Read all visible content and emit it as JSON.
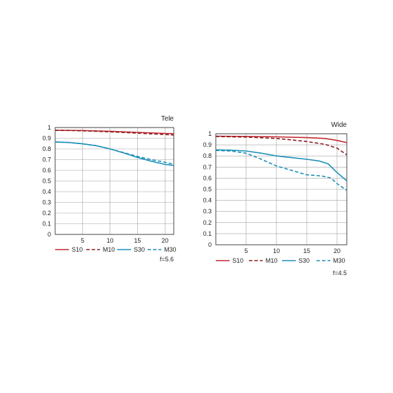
{
  "colors": {
    "sagittal_10": "#c0272d",
    "meridional_10": "#8b1c1f",
    "sagittal_30": "#1a8fb7",
    "meridional_30": "#1a8fb7",
    "grid": "#a0a0a0",
    "frame": "#333333"
  },
  "chart_data": [
    {
      "type": "line",
      "title": "Tele",
      "note": "f=5.6",
      "xlim": [
        0,
        21.6
      ],
      "ylim": [
        0,
        1
      ],
      "xticks": [
        5,
        10,
        15,
        20
      ],
      "yticks": [
        0,
        0.1,
        0.2,
        0.3,
        0.4,
        0.5,
        0.6,
        0.7,
        0.8,
        0.9,
        1
      ],
      "ytick_labels": [
        "0",
        "0.1",
        "0.2",
        "0.3",
        "0.4",
        "0.5",
        "0.6",
        "0.7",
        "0.8",
        "0.9",
        "1"
      ],
      "xtick_labels": [
        "5",
        "10",
        "15",
        "20"
      ],
      "grid": true,
      "legend_position": "below",
      "series": [
        {
          "name": "S10",
          "style": "solid",
          "color_key": "sagittal_10",
          "x": [
            0,
            5,
            10,
            15,
            20,
            21.6
          ],
          "y": [
            0.975,
            0.972,
            0.965,
            0.955,
            0.945,
            0.943
          ]
        },
        {
          "name": "M10",
          "style": "dashed",
          "color_key": "meridional_10",
          "x": [
            0,
            5,
            10,
            15,
            20,
            21.6
          ],
          "y": [
            0.975,
            0.97,
            0.96,
            0.948,
            0.935,
            0.93
          ]
        },
        {
          "name": "S30",
          "style": "solid",
          "color_key": "sagittal_30",
          "x": [
            0,
            2.5,
            5,
            7.5,
            10,
            12.5,
            15,
            17.5,
            20,
            21.6
          ],
          "y": [
            0.865,
            0.86,
            0.848,
            0.83,
            0.8,
            0.762,
            0.72,
            0.685,
            0.655,
            0.645
          ]
        },
        {
          "name": "M30",
          "style": "dashed",
          "color_key": "meridional_30",
          "x": [
            0,
            2.5,
            5,
            7.5,
            10,
            12.5,
            15,
            17.5,
            20,
            21.6
          ],
          "y": [
            0.865,
            0.86,
            0.848,
            0.83,
            0.8,
            0.765,
            0.73,
            0.7,
            0.675,
            0.655
          ]
        }
      ]
    },
    {
      "type": "line",
      "title": "Wide",
      "note": "f=4.5",
      "xlim": [
        0,
        21.6
      ],
      "ylim": [
        0,
        1
      ],
      "xticks": [
        5,
        10,
        15,
        20
      ],
      "yticks": [
        0,
        0.1,
        0.2,
        0.3,
        0.4,
        0.5,
        0.6,
        0.7,
        0.8,
        0.9,
        1
      ],
      "ytick_labels": [
        "0",
        "0.1",
        "0.2",
        "0.3",
        "0.4",
        "0.5",
        "0.6",
        "0.7",
        "0.8",
        "0.9",
        "1"
      ],
      "xtick_labels": [
        "5",
        "10",
        "15",
        "20"
      ],
      "grid": true,
      "legend_position": "below",
      "series": [
        {
          "name": "S10",
          "style": "solid",
          "color_key": "sagittal_10",
          "x": [
            0,
            5,
            10,
            15,
            18,
            20,
            21.6
          ],
          "y": [
            0.978,
            0.976,
            0.972,
            0.965,
            0.958,
            0.94,
            0.92
          ]
        },
        {
          "name": "M10",
          "style": "dashed",
          "color_key": "meridional_10",
          "x": [
            0,
            5,
            10,
            12.5,
            15,
            18,
            20,
            21.6
          ],
          "y": [
            0.975,
            0.97,
            0.958,
            0.945,
            0.93,
            0.905,
            0.87,
            0.81
          ]
        },
        {
          "name": "S30",
          "style": "solid",
          "color_key": "sagittal_30",
          "x": [
            0,
            2.5,
            5,
            7.5,
            10,
            12.5,
            15,
            17,
            18.5,
            20,
            21.6
          ],
          "y": [
            0.855,
            0.852,
            0.845,
            0.825,
            0.8,
            0.785,
            0.77,
            0.755,
            0.73,
            0.65,
            0.575
          ]
        },
        {
          "name": "M30",
          "style": "dashed",
          "color_key": "meridional_30",
          "x": [
            0,
            2.5,
            5,
            7.5,
            10,
            12.5,
            15,
            17.5,
            19,
            20,
            21.6
          ],
          "y": [
            0.85,
            0.845,
            0.825,
            0.77,
            0.71,
            0.67,
            0.63,
            0.62,
            0.6,
            0.55,
            0.49
          ]
        }
      ]
    }
  ]
}
